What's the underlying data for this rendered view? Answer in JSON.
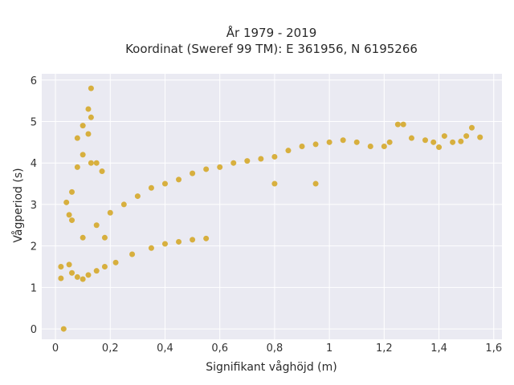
{
  "chart_data": {
    "type": "scatter",
    "title_line1": "År 1979 - 2019",
    "title_line2": "Koordinat (Sweref 99 TM): E 361956, N 6195266",
    "xlabel": "Signifikant våghöjd (m)",
    "ylabel": "Vågperiod (s)",
    "xlim": [
      -0.05,
      1.63
    ],
    "ylim": [
      -0.25,
      6.15
    ],
    "x_ticks": [
      0,
      0.2,
      0.4,
      0.6,
      0.8,
      1.0,
      1.2,
      1.4,
      1.6
    ],
    "x_tick_labels": [
      "0",
      "0,2",
      "0,4",
      "0,6",
      "0,8",
      "1",
      "1,2",
      "1,4",
      "1,6"
    ],
    "y_ticks": [
      0,
      1,
      2,
      3,
      4,
      5,
      6
    ],
    "y_tick_labels": [
      "0",
      "1",
      "2",
      "3",
      "4",
      "5",
      "6"
    ],
    "grid": true,
    "colors": {
      "plot_bg": "#eaeaf2",
      "grid": "#ffffff",
      "marker": "#d4a41f"
    },
    "series": [
      {
        "values_note": "",
        "points": [
          [
            0.03,
            0.0
          ],
          [
            0.02,
            1.22
          ],
          [
            0.02,
            1.5
          ],
          [
            0.05,
            1.55
          ],
          [
            0.06,
            1.35
          ],
          [
            0.08,
            1.25
          ],
          [
            0.1,
            1.2
          ],
          [
            0.12,
            1.3
          ],
          [
            0.15,
            1.4
          ],
          [
            0.18,
            1.5
          ],
          [
            0.22,
            1.6
          ],
          [
            0.28,
            1.8
          ],
          [
            0.35,
            1.95
          ],
          [
            0.4,
            2.05
          ],
          [
            0.45,
            2.1
          ],
          [
            0.5,
            2.15
          ],
          [
            0.55,
            2.18
          ],
          [
            0.1,
            2.2
          ],
          [
            0.15,
            2.5
          ],
          [
            0.2,
            2.8
          ],
          [
            0.25,
            3.0
          ],
          [
            0.3,
            3.2
          ],
          [
            0.35,
            3.4
          ],
          [
            0.4,
            3.5
          ],
          [
            0.45,
            3.6
          ],
          [
            0.5,
            3.75
          ],
          [
            0.55,
            3.85
          ],
          [
            0.6,
            3.9
          ],
          [
            0.65,
            4.0
          ],
          [
            0.7,
            4.05
          ],
          [
            0.75,
            4.1
          ],
          [
            0.8,
            4.15
          ],
          [
            0.85,
            4.3
          ],
          [
            0.9,
            4.4
          ],
          [
            0.95,
            4.45
          ],
          [
            1.0,
            4.5
          ],
          [
            1.05,
            4.55
          ],
          [
            1.1,
            4.5
          ],
          [
            1.15,
            4.4
          ],
          [
            1.2,
            4.4
          ],
          [
            1.22,
            4.5
          ],
          [
            1.25,
            4.93
          ],
          [
            1.27,
            4.93
          ],
          [
            1.3,
            4.6
          ],
          [
            1.35,
            4.55
          ],
          [
            1.38,
            4.5
          ],
          [
            1.4,
            4.38
          ],
          [
            1.42,
            4.65
          ],
          [
            1.45,
            4.5
          ],
          [
            1.48,
            4.52
          ],
          [
            1.5,
            4.65
          ],
          [
            1.52,
            4.85
          ],
          [
            1.55,
            4.62
          ],
          [
            0.06,
            2.62
          ],
          [
            0.05,
            2.75
          ],
          [
            0.04,
            3.05
          ],
          [
            0.06,
            3.3
          ],
          [
            0.08,
            3.9
          ],
          [
            0.1,
            4.2
          ],
          [
            0.12,
            4.7
          ],
          [
            0.13,
            5.1
          ],
          [
            0.12,
            5.3
          ],
          [
            0.13,
            5.8
          ],
          [
            0.1,
            4.9
          ],
          [
            0.08,
            4.6
          ],
          [
            0.13,
            4.0
          ],
          [
            0.15,
            4.0
          ],
          [
            0.17,
            3.8
          ],
          [
            0.18,
            2.2
          ],
          [
            0.8,
            3.5
          ],
          [
            0.95,
            3.5
          ]
        ]
      }
    ]
  }
}
